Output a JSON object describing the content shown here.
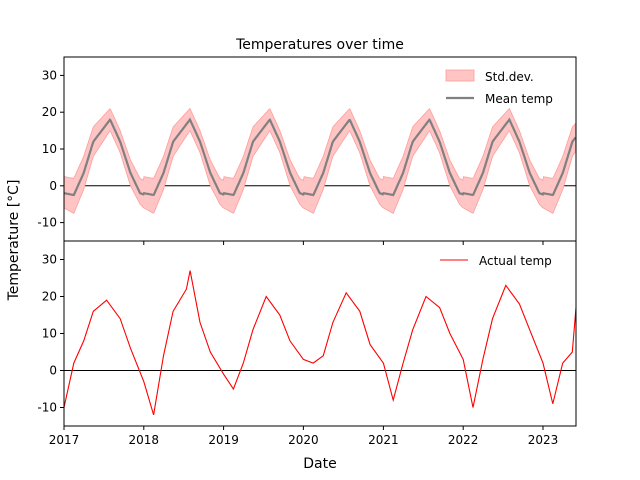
{
  "figure": {
    "title": "Temperatures over time",
    "ylabel": "Temperature [°C]",
    "xlabel": "Date"
  },
  "chart_data": [
    {
      "type": "line",
      "panel": "top",
      "title": "Temperatures over time",
      "xlabel": "",
      "ylabel": "Temperature [°C]",
      "x_ticks": [
        "2017",
        "2018",
        "2019",
        "2020",
        "2021",
        "2022",
        "2023"
      ],
      "xlim": [
        "2017-01-01",
        "2023-06-01"
      ],
      "ylim": [
        -15,
        35
      ],
      "y_ticks": [
        -10,
        0,
        10,
        20,
        30
      ],
      "zero_line": true,
      "grid": false,
      "legend_position": "top-right",
      "series": [
        {
          "name": "Std.dev.",
          "kind": "band",
          "color": "#ffc4c4",
          "edge_color": "#ff9c9c",
          "description_values": "mean ± approx. 3",
          "x": [
            "2017-01-01",
            "2017-02-15",
            "2017-04-01",
            "2017-05-15",
            "2017-07-31",
            "2017-09-15",
            "2017-11-01",
            "2017-12-15",
            "2018-01-31"
          ],
          "upper": [
            2.5,
            2.0,
            8.0,
            16.0,
            21.0,
            15.0,
            7.0,
            2.0,
            0.5
          ],
          "lower": [
            -6.0,
            -7.5,
            -1.0,
            8.0,
            15.0,
            9.0,
            0.0,
            -5.0,
            -8.0
          ]
        },
        {
          "name": "Mean temp",
          "kind": "line",
          "color": "#808080",
          "x": [
            "2017-01-01",
            "2017-02-15",
            "2017-04-01",
            "2017-05-15",
            "2017-07-31",
            "2017-09-15",
            "2017-11-01",
            "2017-12-15",
            "2018-01-31"
          ],
          "values": [
            -2.0,
            -2.5,
            3.5,
            12.0,
            18.0,
            12.0,
            3.5,
            -2.0,
            -3.0
          ]
        }
      ]
    },
    {
      "type": "line",
      "panel": "bottom",
      "xlabel": "Date",
      "ylabel": "",
      "x_ticks": [
        "2017",
        "2018",
        "2019",
        "2020",
        "2021",
        "2022",
        "2023"
      ],
      "xlim": [
        "2017-01-01",
        "2023-06-01"
      ],
      "ylim": [
        -15,
        35
      ],
      "y_ticks": [
        -10,
        0,
        10,
        20,
        30
      ],
      "zero_line": true,
      "grid": false,
      "legend_position": "top-right",
      "series": [
        {
          "name": "Actual temp",
          "color": "#ff0000",
          "x": [
            "2017-01-01",
            "2017-02-15",
            "2017-04-01",
            "2017-05-15",
            "2017-07-15",
            "2017-09-15",
            "2017-11-01",
            "2018-01-01",
            "2018-02-15",
            "2018-04-01",
            "2018-05-15",
            "2018-07-15",
            "2018-08-01",
            "2018-09-15",
            "2018-11-01",
            "2019-01-01",
            "2019-02-15",
            "2019-04-01",
            "2019-05-15",
            "2019-07-15",
            "2019-09-15",
            "2019-11-01",
            "2020-01-01",
            "2020-02-15",
            "2020-04-01",
            "2020-05-15",
            "2020-07-15",
            "2020-09-15",
            "2020-11-01",
            "2021-01-01",
            "2021-02-15",
            "2021-04-01",
            "2021-05-15",
            "2021-07-15",
            "2021-09-15",
            "2021-11-01",
            "2022-01-01",
            "2022-02-15",
            "2022-04-01",
            "2022-05-15",
            "2022-07-15",
            "2022-09-15",
            "2022-11-01",
            "2023-01-01",
            "2023-02-15",
            "2023-04-01",
            "2023-05-15",
            "2023-06-01"
          ],
          "values": [
            -10,
            2,
            8,
            16,
            19,
            14,
            6,
            -3,
            -12,
            4,
            16,
            22,
            27,
            13,
            5,
            -1,
            -5,
            2,
            11,
            20,
            15,
            8,
            3,
            2,
            4,
            13,
            21,
            16,
            7,
            2,
            -8,
            2,
            11,
            20,
            17,
            10,
            3,
            -10,
            3,
            14,
            23,
            18,
            11,
            2,
            -9,
            2,
            5,
            17
          ]
        }
      ]
    }
  ]
}
